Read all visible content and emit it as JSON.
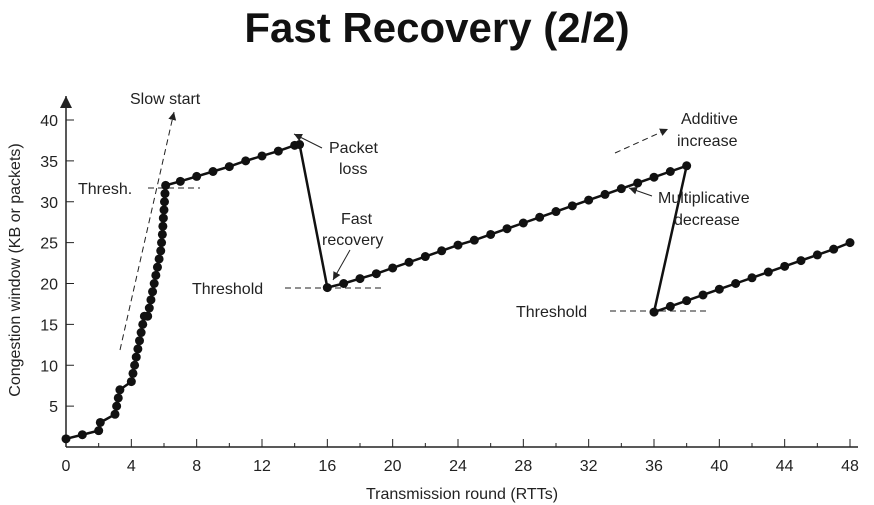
{
  "slide": {
    "title": "Fast Recovery (2/2)"
  },
  "chart_data": {
    "type": "line",
    "xlabel": "Transmission round (RTTs)",
    "ylabel": "Congestion window (KB or packets)",
    "xlim": [
      0,
      48
    ],
    "ylim": [
      0,
      40
    ],
    "xticks": [
      0,
      4,
      8,
      12,
      16,
      20,
      24,
      28,
      32,
      36,
      40,
      44,
      48
    ],
    "yticks": [
      5,
      10,
      15,
      20,
      25,
      30,
      35,
      40
    ],
    "grid": false,
    "series": [
      {
        "points": [
          [
            0,
            1
          ],
          [
            1,
            1.5
          ],
          [
            2,
            2
          ],
          [
            2.1,
            3
          ],
          [
            3,
            4
          ],
          [
            3.1,
            5
          ],
          [
            3.2,
            6
          ],
          [
            3.3,
            7
          ],
          [
            4,
            8
          ],
          [
            4.1,
            9
          ],
          [
            4.2,
            10
          ],
          [
            4.3,
            11
          ],
          [
            4.4,
            12
          ],
          [
            4.5,
            13
          ],
          [
            4.6,
            14
          ],
          [
            4.7,
            15
          ],
          [
            4.8,
            16
          ],
          [
            5,
            16
          ],
          [
            5.1,
            17
          ],
          [
            5.2,
            18
          ],
          [
            5.3,
            19
          ],
          [
            5.4,
            20
          ],
          [
            5.5,
            21
          ],
          [
            5.6,
            22
          ],
          [
            5.7,
            23
          ],
          [
            5.8,
            24
          ],
          [
            5.85,
            25
          ],
          [
            5.9,
            26
          ],
          [
            5.93,
            27
          ],
          [
            5.96,
            28
          ],
          [
            6,
            29
          ],
          [
            6.03,
            30
          ],
          [
            6.06,
            31
          ],
          [
            6.1,
            32
          ],
          [
            7,
            32.5
          ],
          [
            8,
            33.1
          ],
          [
            9,
            33.7
          ],
          [
            10,
            34.3
          ],
          [
            11,
            35
          ],
          [
            12,
            35.6
          ],
          [
            13,
            36.2
          ],
          [
            14,
            36.9
          ],
          [
            14.3,
            37
          ],
          [
            16,
            19.5
          ],
          [
            17,
            20
          ],
          [
            18,
            20.6
          ],
          [
            19,
            21.2
          ],
          [
            20,
            21.9
          ],
          [
            21,
            22.6
          ],
          [
            22,
            23.3
          ],
          [
            23,
            24
          ],
          [
            24,
            24.7
          ],
          [
            25,
            25.3
          ],
          [
            26,
            26
          ],
          [
            27,
            26.7
          ],
          [
            28,
            27.4
          ],
          [
            29,
            28.1
          ],
          [
            30,
            28.8
          ],
          [
            31,
            29.5
          ],
          [
            32,
            30.2
          ],
          [
            33,
            30.9
          ],
          [
            34,
            31.6
          ],
          [
            35,
            32.3
          ],
          [
            36,
            33
          ],
          [
            37,
            33.7
          ],
          [
            38,
            34.4
          ],
          [
            36,
            16.5
          ],
          [
            37,
            17.2
          ],
          [
            38,
            17.9
          ],
          [
            39,
            18.6
          ],
          [
            40,
            19.3
          ],
          [
            41,
            20
          ],
          [
            42,
            20.7
          ],
          [
            43,
            21.4
          ],
          [
            44,
            22.1
          ],
          [
            45,
            22.8
          ],
          [
            46,
            23.5
          ],
          [
            47,
            24.2
          ],
          [
            48,
            25
          ]
        ]
      }
    ],
    "annotations": [
      {
        "text": "Slow start"
      },
      {
        "text": "Thresh."
      },
      {
        "text": "Packet"
      },
      {
        "text": "loss"
      },
      {
        "text": "Fast"
      },
      {
        "text": "recovery"
      },
      {
        "text": "Threshold"
      },
      {
        "text": "Additive"
      },
      {
        "text": "increase"
      },
      {
        "text": "Multiplicative"
      },
      {
        "text": "decrease"
      },
      {
        "text": "Threshold"
      }
    ]
  }
}
